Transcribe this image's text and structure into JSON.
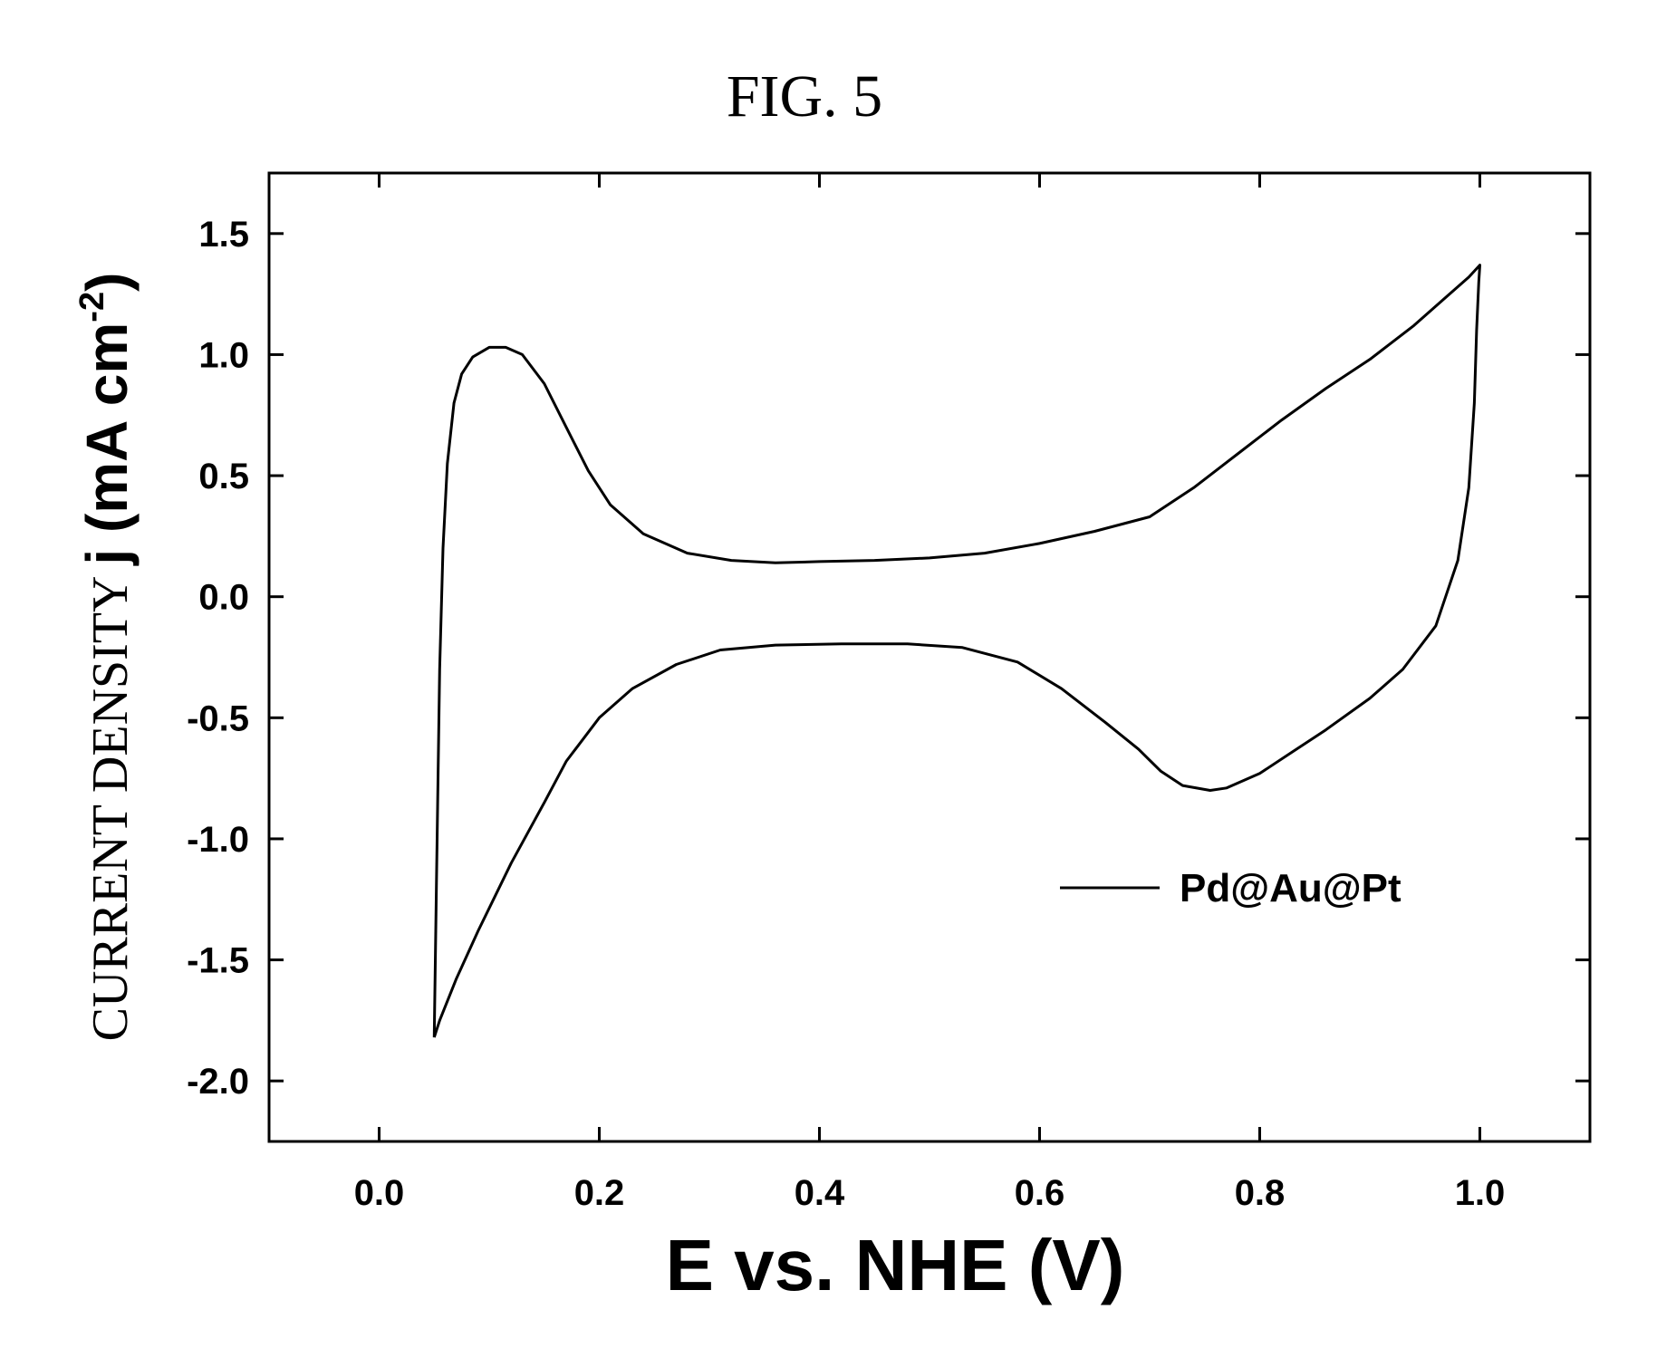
{
  "figure_title": "FIG. 5",
  "chart_data": {
    "type": "line",
    "xlabel": "E vs. NHE (V)",
    "ylabel_prefix": "CURRENT DENSITY ",
    "ylabel_main": "j (mA cm",
    "ylabel_sup": "-2",
    "ylabel_suffix": ")",
    "xlim": [
      -0.1,
      1.1
    ],
    "ylim": [
      -2.25,
      1.75
    ],
    "x_ticks": [
      0.0,
      0.2,
      0.4,
      0.6,
      0.8,
      1.0
    ],
    "x_tick_labels": [
      "0.0",
      "0.2",
      "0.4",
      "0.6",
      "0.8",
      "1.0"
    ],
    "y_ticks": [
      1.5,
      1.0,
      0.5,
      0.0,
      -0.5,
      -1.0,
      -1.5,
      -2.0
    ],
    "y_tick_labels": [
      "1.5",
      "1.0",
      "0.5",
      "0.0",
      "-0.5",
      "-1.0",
      "-1.5",
      "-2.0"
    ],
    "legend_position": "right-center",
    "series": [
      {
        "name": "Pd@Au@Pt",
        "color": "#000000",
        "points": [
          [
            0.05,
            -1.82
          ],
          [
            0.052,
            -1.2
          ],
          [
            0.055,
            -0.3
          ],
          [
            0.058,
            0.2
          ],
          [
            0.062,
            0.55
          ],
          [
            0.068,
            0.8
          ],
          [
            0.075,
            0.92
          ],
          [
            0.085,
            0.99
          ],
          [
            0.1,
            1.03
          ],
          [
            0.115,
            1.03
          ],
          [
            0.13,
            1.0
          ],
          [
            0.15,
            0.88
          ],
          [
            0.17,
            0.7
          ],
          [
            0.19,
            0.52
          ],
          [
            0.21,
            0.38
          ],
          [
            0.24,
            0.26
          ],
          [
            0.28,
            0.18
          ],
          [
            0.32,
            0.15
          ],
          [
            0.36,
            0.14
          ],
          [
            0.4,
            0.145
          ],
          [
            0.45,
            0.15
          ],
          [
            0.5,
            0.16
          ],
          [
            0.55,
            0.18
          ],
          [
            0.6,
            0.22
          ],
          [
            0.65,
            0.27
          ],
          [
            0.7,
            0.33
          ],
          [
            0.74,
            0.45
          ],
          [
            0.78,
            0.59
          ],
          [
            0.82,
            0.73
          ],
          [
            0.86,
            0.86
          ],
          [
            0.9,
            0.98
          ],
          [
            0.94,
            1.12
          ],
          [
            0.97,
            1.24
          ],
          [
            0.99,
            1.32
          ],
          [
            1.0,
            1.37
          ],
          [
            0.999,
            1.3
          ],
          [
            0.997,
            1.1
          ],
          [
            0.995,
            0.8
          ],
          [
            0.99,
            0.45
          ],
          [
            0.98,
            0.15
          ],
          [
            0.96,
            -0.12
          ],
          [
            0.93,
            -0.3
          ],
          [
            0.9,
            -0.42
          ],
          [
            0.86,
            -0.55
          ],
          [
            0.83,
            -0.64
          ],
          [
            0.8,
            -0.73
          ],
          [
            0.77,
            -0.79
          ],
          [
            0.755,
            -0.8
          ],
          [
            0.73,
            -0.78
          ],
          [
            0.71,
            -0.72
          ],
          [
            0.69,
            -0.63
          ],
          [
            0.66,
            -0.52
          ],
          [
            0.62,
            -0.38
          ],
          [
            0.58,
            -0.27
          ],
          [
            0.53,
            -0.21
          ],
          [
            0.48,
            -0.195
          ],
          [
            0.42,
            -0.195
          ],
          [
            0.36,
            -0.2
          ],
          [
            0.31,
            -0.22
          ],
          [
            0.27,
            -0.28
          ],
          [
            0.23,
            -0.38
          ],
          [
            0.2,
            -0.5
          ],
          [
            0.17,
            -0.68
          ],
          [
            0.15,
            -0.85
          ],
          [
            0.12,
            -1.1
          ],
          [
            0.09,
            -1.38
          ],
          [
            0.07,
            -1.58
          ],
          [
            0.055,
            -1.75
          ],
          [
            0.05,
            -1.82
          ]
        ]
      }
    ]
  }
}
